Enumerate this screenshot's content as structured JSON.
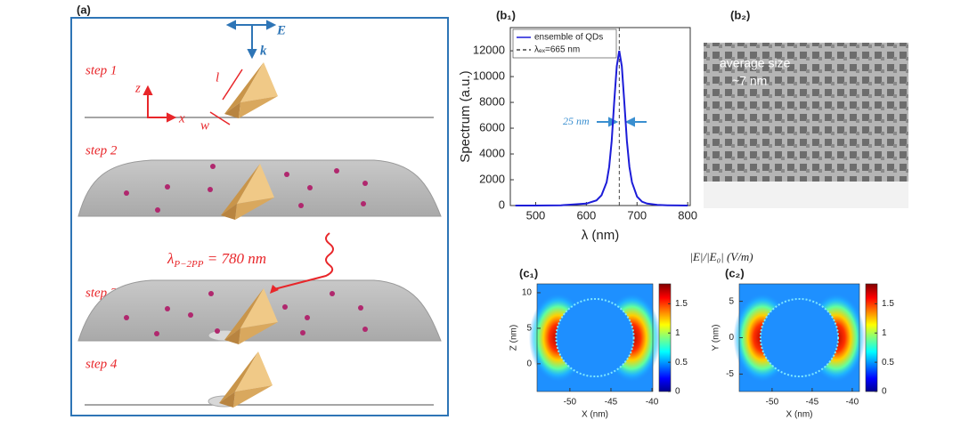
{
  "panel_a": {
    "label": "(a)",
    "steps": [
      "step 1",
      "step 2",
      "step 3",
      "step 4"
    ],
    "vectors": [
      "E",
      "k"
    ],
    "frame": [
      "z",
      "x"
    ],
    "dims": [
      "l",
      "w"
    ],
    "laser": {
      "symbol": "λ",
      "subscript": "P−2PP",
      "text": " = 780 nm"
    }
  },
  "panel_b2": {
    "label": "(b₂)",
    "annotation": [
      "average size",
      "~7 nm"
    ]
  },
  "colormap_title": "|E|/|E₀| (V/m)",
  "chart_data": [
    {
      "type": "line",
      "label": "(b₁)",
      "xlabel": "λ (nm)",
      "ylabel": "Spectrum (a.u.)",
      "x": [
        460,
        500,
        550,
        600,
        620,
        630,
        640,
        645,
        650,
        655,
        660,
        665,
        670,
        675,
        680,
        685,
        690,
        700,
        710,
        720,
        740,
        760,
        800
      ],
      "series": [
        {
          "name": "ensemble of QDs",
          "color": "#1c1cd8",
          "values": [
            0,
            0,
            20,
            150,
            400,
            800,
            1800,
            3000,
            5000,
            8000,
            10800,
            12000,
            10800,
            8000,
            5000,
            3000,
            1800,
            700,
            300,
            150,
            50,
            20,
            0
          ]
        }
      ],
      "reference_lines": [
        {
          "name": "λₑₓ=665 nm",
          "x": 665,
          "color": "#444444"
        }
      ],
      "annotations": [
        {
          "text": "25 nm",
          "color": "#3a8fd0"
        }
      ],
      "xlim": [
        450,
        805
      ],
      "ylim": [
        0,
        13800
      ],
      "xticks": [
        500,
        600,
        700,
        800
      ],
      "yticks": [
        0,
        2000,
        4000,
        6000,
        8000,
        10000,
        12000
      ],
      "legend": "upper left"
    },
    {
      "type": "heatmap",
      "label": "(c₁)",
      "xlabel": "X (nm)",
      "ylabel": "Z (nm)",
      "xlim": [
        -54,
        -39.9
      ],
      "ylim": [
        -3.9,
        11.25
      ],
      "xticks": [
        -50,
        -45,
        -40
      ],
      "yticks": [
        0,
        5,
        10
      ],
      "clim": [
        0,
        1.84
      ],
      "cticks": [
        0,
        0.5,
        1,
        1.5
      ]
    },
    {
      "type": "heatmap",
      "label": "(c₂)",
      "xlabel": "X (nm)",
      "ylabel": "Y (nm)",
      "xlim": [
        -54.1,
        -39.1
      ],
      "ylim": [
        -7.4,
        7.4
      ],
      "xticks": [
        -50,
        -45,
        -40
      ],
      "yticks": [
        -5,
        0,
        5
      ],
      "clim": [
        0,
        1.84
      ],
      "cticks": [
        0,
        0.5,
        1,
        1.5
      ]
    }
  ]
}
